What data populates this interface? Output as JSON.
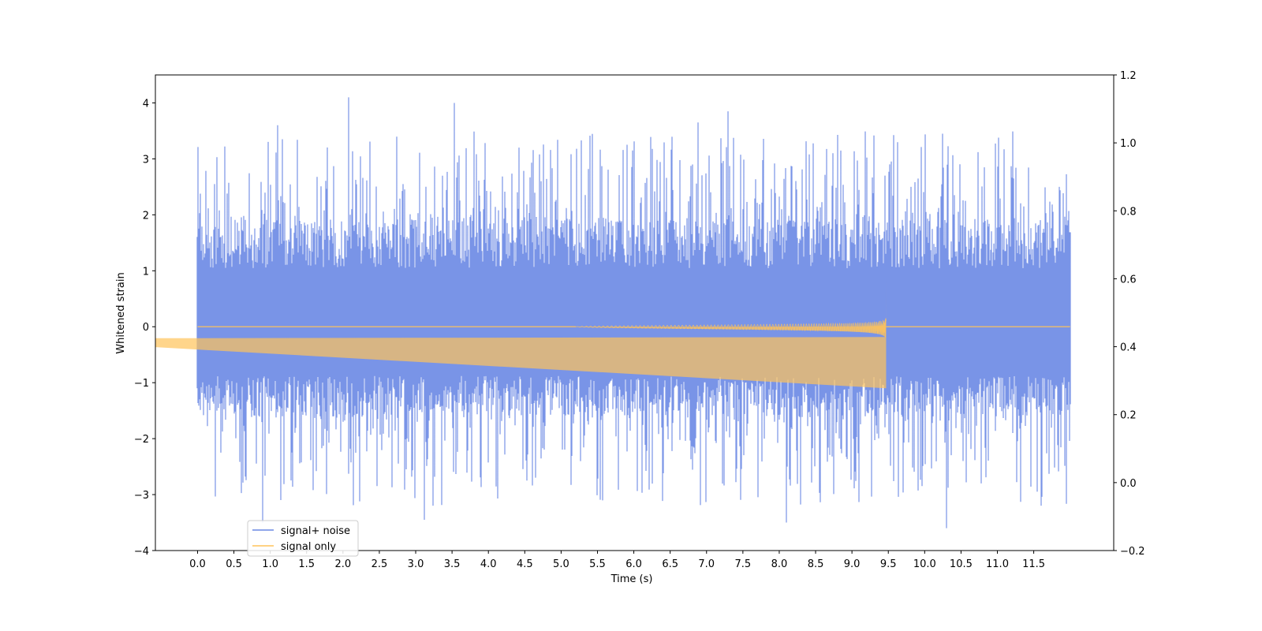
{
  "chart_data": {
    "type": "line",
    "title": "",
    "xlabel": "Time (s)",
    "ylabel": "Whitened strain",
    "y2label": "",
    "xlim": [
      -0.58,
      12.6
    ],
    "ylim": [
      -4,
      4.5
    ],
    "y2lim": [
      -0.2,
      1.2
    ],
    "x_ticks": [
      "0.0",
      "0.5",
      "1.0",
      "1.5",
      "2.0",
      "2.5",
      "3.0",
      "3.5",
      "4.0",
      "4.5",
      "5.0",
      "5.5",
      "6.0",
      "6.5",
      "7.0",
      "7.5",
      "8.0",
      "8.5",
      "9.0",
      "9.5",
      "10.0",
      "10.5",
      "11.0",
      "11.5"
    ],
    "y_ticks": [
      "−4",
      "−3",
      "−2",
      "−1",
      "0",
      "1",
      "2",
      "3",
      "4"
    ],
    "y2_ticks": [
      "−0.2",
      "0.0",
      "0.2",
      "0.4",
      "0.6",
      "0.8",
      "1.0",
      "1.2"
    ],
    "grid": false,
    "legend": {
      "placement": "bottom-left"
    },
    "series": [
      {
        "name": "signal+ noise",
        "color": "#6a88e4",
        "x_range": [
          0,
          12
        ],
        "typical_envelope": [
          -1.6,
          1.9
        ],
        "extreme_range": [
          -3.6,
          4.1
        ],
        "peaks": [
          {
            "x": 2.08,
            "y": 4.1
          },
          {
            "x": 3.53,
            "y": 4.0
          },
          {
            "x": 7.3,
            "y": 3.85
          },
          {
            "x": 1.1,
            "y": 3.6
          },
          {
            "x": 6.88,
            "y": 3.65
          },
          {
            "x": 10.25,
            "y": 3.45
          },
          {
            "x": 10.3,
            "y": -3.6
          },
          {
            "x": 8.1,
            "y": -3.5
          },
          {
            "x": 3.12,
            "y": -3.45
          },
          {
            "x": 0.9,
            "y": -3.5
          }
        ]
      },
      {
        "name": "signal only",
        "color": "#ffc35a",
        "type": "chirp",
        "start_x": 5.2,
        "merger_x": 9.47,
        "peak_amplitude": 0.85,
        "min_amplitude": -1.1
      }
    ]
  }
}
